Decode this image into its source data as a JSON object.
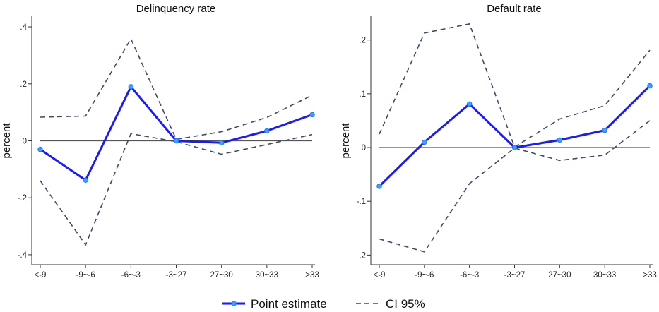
{
  "chart_data": [
    {
      "type": "line",
      "title": "Delinquency rate",
      "xlabel": "",
      "ylabel": "percent",
      "categories": [
        "<-9",
        "-9~-6",
        "-6~-3",
        "-3~27",
        "27~30",
        "30~33",
        ">33"
      ],
      "ylim": [
        -0.42,
        0.42
      ],
      "yticks": [
        -0.4,
        -0.2,
        0,
        0.2,
        0.4
      ],
      "ytick_labels": [
        "-.4",
        "-.2",
        "0",
        ".2",
        ".4"
      ],
      "grid": false,
      "series": [
        {
          "name": "Point estimate",
          "values": [
            -0.03,
            -0.138,
            0.19,
            0.0,
            -0.007,
            0.035,
            0.092
          ],
          "color": "#1a1aff",
          "style": "solid-markers"
        },
        {
          "name": "CI 95%",
          "values": [
            0.083,
            0.087,
            0.358,
            0.005,
            0.032,
            0.082,
            0.16
          ],
          "color": "#3d4a6b",
          "style": "dashed"
        },
        {
          "name": "",
          "values": [
            -0.14,
            -0.365,
            0.025,
            -0.003,
            -0.047,
            -0.013,
            0.022
          ],
          "color": "#3d4a6b",
          "style": "dashed"
        }
      ]
    },
    {
      "type": "line",
      "title": "Default rate",
      "xlabel": "",
      "ylabel": "percent",
      "categories": [
        "<-9",
        "-9~-6",
        "-6~-3",
        "-3~27",
        "27~30",
        "30~33",
        ">33"
      ],
      "ylim": [
        -0.21,
        0.235
      ],
      "yticks": [
        -0.2,
        -0.1,
        0,
        0.1,
        0.2
      ],
      "ytick_labels": [
        "-.2",
        "-.1",
        "0",
        ".1",
        ".2"
      ],
      "grid": false,
      "series": [
        {
          "name": "Point estimate",
          "values": [
            -0.072,
            0.01,
            0.081,
            0.0,
            0.014,
            0.032,
            0.115
          ],
          "color": "#1a1aff",
          "style": "solid-markers"
        },
        {
          "name": "CI 95%",
          "values": [
            0.025,
            0.213,
            0.23,
            0.001,
            0.053,
            0.078,
            0.181
          ],
          "color": "#3d4a6b",
          "style": "dashed"
        },
        {
          "name": "",
          "values": [
            -0.17,
            -0.194,
            -0.067,
            -0.001,
            -0.024,
            -0.014,
            0.05
          ],
          "color": "#3d4a6b",
          "style": "dashed"
        }
      ]
    }
  ],
  "legend": {
    "placement": "bottom-center",
    "items": [
      {
        "label": "Point estimate",
        "style": "solid-markers",
        "color": "#1a1aff"
      },
      {
        "label": "CI 95%",
        "style": "dashed",
        "color": "#3d4a6b"
      }
    ]
  }
}
